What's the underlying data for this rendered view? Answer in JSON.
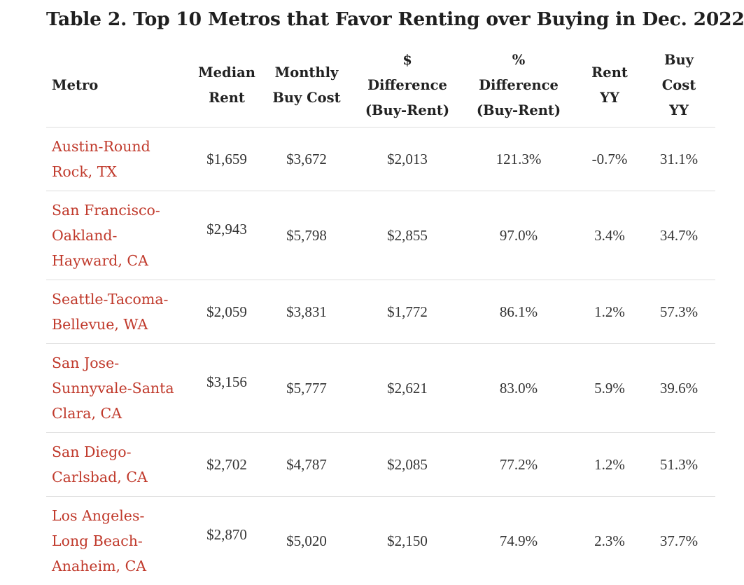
{
  "title": "Table 2. Top 10 Metros that Favor Renting over Buying in Dec. 2022",
  "headers": {
    "metro": [
      "Metro"
    ],
    "median_rent": [
      "Median",
      "Rent"
    ],
    "monthly_buy_cost": [
      "Monthly",
      "Buy Cost"
    ],
    "dollar_difference": [
      "$",
      "Difference",
      "(Buy-Rent)"
    ],
    "percent_difference": [
      "%",
      "Difference",
      "(Buy-Rent)"
    ],
    "rent_yy": [
      "Rent",
      "YY"
    ],
    "buy_cost_yy": [
      "Buy",
      "Cost",
      "YY"
    ]
  },
  "rows": [
    {
      "metro": [
        "Austin-Round",
        "Rock, TX"
      ],
      "median_rent": "$1,659",
      "monthly_buy_cost": "$3,672",
      "dollar_difference": "$2,013",
      "percent_difference": "121.3%",
      "rent_yy": "-0.7%",
      "buy_cost_yy": "31.1%"
    },
    {
      "metro": [
        "San Francisco-",
        "Oakland-",
        "Hayward, CA"
      ],
      "median_rent": "$2,943",
      "monthly_buy_cost": "$5,798",
      "dollar_difference": "$2,855",
      "percent_difference": "97.0%",
      "rent_yy": "3.4%",
      "buy_cost_yy": "34.7%"
    },
    {
      "metro": [
        "Seattle-Tacoma-",
        "Bellevue, WA"
      ],
      "median_rent": "$2,059",
      "monthly_buy_cost": "$3,831",
      "dollar_difference": "$1,772",
      "percent_difference": "86.1%",
      "rent_yy": "1.2%",
      "buy_cost_yy": "57.3%"
    },
    {
      "metro": [
        "San Jose-",
        "Sunnyvale-Santa",
        "Clara, CA"
      ],
      "median_rent": "$3,156",
      "monthly_buy_cost": "$5,777",
      "dollar_difference": "$2,621",
      "percent_difference": "83.0%",
      "rent_yy": "5.9%",
      "buy_cost_yy": "39.6%"
    },
    {
      "metro": [
        "San Diego-",
        "Carlsbad, CA"
      ],
      "median_rent": "$2,702",
      "monthly_buy_cost": "$4,787",
      "dollar_difference": "$2,085",
      "percent_difference": "77.2%",
      "rent_yy": "1.2%",
      "buy_cost_yy": "51.3%"
    },
    {
      "metro": [
        "Los Angeles-",
        "Long Beach-",
        "Anaheim, CA"
      ],
      "median_rent": "$2,870",
      "monthly_buy_cost": "$5,020",
      "dollar_difference": "$2,150",
      "percent_difference": "74.9%",
      "rent_yy": "2.3%",
      "buy_cost_yy": "37.7%"
    }
  ]
}
